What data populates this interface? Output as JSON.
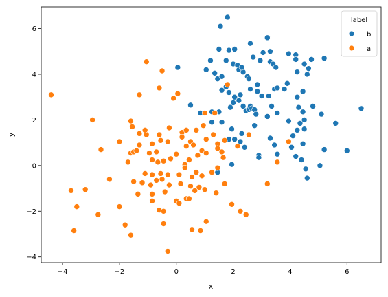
{
  "chart_data": {
    "type": "scatter",
    "title": "",
    "xlabel": "x",
    "ylabel": "y",
    "xlim": [
      -4.75,
      7.2
    ],
    "ylim": [
      -4.25,
      6.95
    ],
    "xticks": [
      -4,
      -2,
      0,
      2,
      4,
      6
    ],
    "yticks": [
      -4,
      -2,
      0,
      2,
      4,
      6
    ],
    "grid": false,
    "legend": {
      "title": "label",
      "placement": "top-right"
    },
    "series": [
      {
        "name": "b",
        "color": "#1f77b4",
        "points": [
          [
            1.8,
            6.5
          ],
          [
            1.55,
            6.1
          ],
          [
            3.2,
            5.6
          ],
          [
            2.6,
            5.35
          ],
          [
            1.5,
            5.1
          ],
          [
            1.85,
            5.05
          ],
          [
            2.05,
            5.1
          ],
          [
            1.05,
            4.2
          ],
          [
            1.2,
            4.6
          ],
          [
            1.75,
            4.6
          ],
          [
            2.0,
            4.45
          ],
          [
            2.15,
            4.4
          ],
          [
            2.2,
            4.2
          ],
          [
            2.35,
            4.1
          ],
          [
            2.3,
            4.3
          ],
          [
            2.5,
            3.9
          ],
          [
            2.7,
            4.75
          ],
          [
            2.95,
            4.6
          ],
          [
            3.05,
            4.95
          ],
          [
            3.3,
            5.0
          ],
          [
            3.3,
            4.55
          ],
          [
            3.4,
            4.45
          ],
          [
            3.5,
            4.3
          ],
          [
            3.95,
            4.9
          ],
          [
            4.2,
            4.85
          ],
          [
            4.2,
            4.65
          ],
          [
            4.5,
            4.45
          ],
          [
            4.65,
            4.25
          ],
          [
            4.6,
            4.0
          ],
          [
            4.75,
            4.65
          ],
          [
            5.2,
            4.7
          ],
          [
            0.05,
            4.3
          ],
          [
            1.35,
            4.05
          ],
          [
            1.45,
            3.8
          ],
          [
            1.6,
            3.9
          ],
          [
            2.55,
            3.8
          ],
          [
            1.6,
            3.3
          ],
          [
            1.75,
            3.45
          ],
          [
            1.85,
            3.2
          ],
          [
            2.05,
            3.0
          ],
          [
            2.25,
            3.1
          ],
          [
            2.6,
            3.35
          ],
          [
            2.85,
            3.55
          ],
          [
            2.85,
            3.25
          ],
          [
            3.0,
            3.05
          ],
          [
            3.25,
            3.05
          ],
          [
            3.45,
            3.35
          ],
          [
            3.55,
            3.4
          ],
          [
            3.8,
            3.35
          ],
          [
            3.9,
            3.6
          ],
          [
            4.25,
            4.1
          ],
          [
            4.25,
            3.0
          ],
          [
            4.45,
            3.25
          ],
          [
            2.0,
            2.75
          ],
          [
            2.2,
            2.85
          ],
          [
            2.35,
            2.6
          ],
          [
            2.45,
            2.4
          ],
          [
            2.55,
            2.45
          ],
          [
            2.6,
            2.6
          ],
          [
            2.65,
            2.5
          ],
          [
            2.75,
            2.45
          ],
          [
            2.8,
            2.25
          ],
          [
            3.2,
            2.15
          ],
          [
            3.35,
            2.6
          ],
          [
            3.55,
            2.3
          ],
          [
            3.95,
            1.95
          ],
          [
            4.3,
            2.55
          ],
          [
            4.45,
            2.35
          ],
          [
            4.5,
            2.0
          ],
          [
            4.8,
            2.6
          ],
          [
            5.1,
            2.25
          ],
          [
            5.6,
            1.85
          ],
          [
            6.5,
            2.5
          ],
          [
            0.5,
            2.65
          ],
          [
            0.85,
            2.3
          ],
          [
            1.25,
            2.35
          ],
          [
            1.5,
            2.35
          ],
          [
            1.9,
            2.55
          ],
          [
            1.6,
            1.9
          ],
          [
            1.95,
            1.6
          ],
          [
            2.3,
            1.4
          ],
          [
            2.75,
            1.75
          ],
          [
            4.25,
            1.55
          ],
          [
            4.35,
            1.85
          ],
          [
            4.5,
            1.6
          ],
          [
            4.1,
            1.3
          ],
          [
            1.85,
            1.15
          ],
          [
            2.05,
            1.15
          ],
          [
            2.25,
            1.05
          ],
          [
            2.4,
            0.8
          ],
          [
            2.9,
            0.45
          ],
          [
            2.9,
            0.35
          ],
          [
            3.3,
            1.2
          ],
          [
            3.45,
            0.9
          ],
          [
            3.55,
            0.5
          ],
          [
            4.05,
            0.8
          ],
          [
            4.45,
            0.95
          ],
          [
            5.2,
            0.7
          ],
          [
            6.0,
            0.65
          ],
          [
            4.2,
            0.4
          ],
          [
            4.4,
            0.25
          ],
          [
            4.55,
            -0.15
          ],
          [
            4.6,
            -0.55
          ],
          [
            5.05,
            0.0
          ],
          [
            1.45,
            -0.3
          ],
          [
            1.95,
            0.05
          ],
          [
            1.25,
            1.9
          ]
        ]
      },
      {
        "name": "a",
        "color": "#ff7f0e",
        "points": [
          [
            -4.4,
            3.1
          ],
          [
            -1.05,
            4.55
          ],
          [
            -0.5,
            4.15
          ],
          [
            -0.6,
            3.4
          ],
          [
            -1.3,
            3.1
          ],
          [
            -0.1,
            2.95
          ],
          [
            0.05,
            3.15
          ],
          [
            1.8,
            3.55
          ],
          [
            1.0,
            2.3
          ],
          [
            1.35,
            2.3
          ],
          [
            -1.6,
            1.95
          ],
          [
            -1.55,
            1.7
          ],
          [
            -2.95,
            2.0
          ],
          [
            -1.3,
            1.4
          ],
          [
            -1.05,
            1.35
          ],
          [
            -1.1,
            1.55
          ],
          [
            -0.6,
            1.35
          ],
          [
            -0.25,
            1.65
          ],
          [
            0.2,
            1.45
          ],
          [
            0.35,
            1.55
          ],
          [
            0.7,
            1.55
          ],
          [
            0.95,
            1.75
          ],
          [
            1.3,
            1.35
          ],
          [
            2.55,
            1.35
          ],
          [
            -2.0,
            1.05
          ],
          [
            -1.3,
            0.9
          ],
          [
            -0.85,
            0.95
          ],
          [
            -0.7,
            0.6
          ],
          [
            -0.55,
            1.1
          ],
          [
            -0.3,
            1.05
          ],
          [
            0.2,
            1.25
          ],
          [
            0.35,
            0.85
          ],
          [
            0.5,
            1.05
          ],
          [
            0.6,
            0.9
          ],
          [
            0.9,
            0.65
          ],
          [
            1.05,
            1.15
          ],
          [
            1.45,
            0.95
          ],
          [
            1.6,
            0.6
          ],
          [
            1.7,
            1.1
          ],
          [
            2.15,
            0.85
          ],
          [
            3.95,
            1.05
          ],
          [
            -2.65,
            0.7
          ],
          [
            -1.6,
            0.55
          ],
          [
            -1.5,
            0.6
          ],
          [
            -1.4,
            0.65
          ],
          [
            -0.95,
            0.55
          ],
          [
            -0.85,
            0.25
          ],
          [
            -0.65,
            0.15
          ],
          [
            -0.45,
            0.2
          ],
          [
            -0.2,
            0.3
          ],
          [
            0.0,
            0.5
          ],
          [
            0.3,
            0.05
          ],
          [
            0.45,
            0.25
          ],
          [
            0.75,
            0.45
          ],
          [
            1.05,
            0.55
          ],
          [
            1.45,
            0.75
          ],
          [
            1.65,
            0.35
          ],
          [
            3.55,
            0.15
          ],
          [
            -1.7,
            0.15
          ],
          [
            -1.1,
            -0.35
          ],
          [
            -0.85,
            -0.4
          ],
          [
            -0.55,
            -0.35
          ],
          [
            -0.3,
            -0.4
          ],
          [
            0.1,
            -0.4
          ],
          [
            0.3,
            -0.1
          ],
          [
            0.55,
            -0.5
          ],
          [
            0.7,
            -0.3
          ],
          [
            0.9,
            -0.45
          ],
          [
            1.25,
            -0.3
          ],
          [
            1.45,
            -0.1
          ],
          [
            -2.35,
            -0.6
          ],
          [
            -1.5,
            -0.7
          ],
          [
            -1.2,
            -0.75
          ],
          [
            -0.9,
            -0.85
          ],
          [
            -0.7,
            -0.65
          ],
          [
            -0.5,
            -0.6
          ],
          [
            -0.25,
            -0.85
          ],
          [
            0.15,
            -0.8
          ],
          [
            0.5,
            -0.9
          ],
          [
            0.8,
            -0.95
          ],
          [
            1.0,
            -1.05
          ],
          [
            1.7,
            -0.8
          ],
          [
            3.2,
            -0.8
          ],
          [
            -3.7,
            -1.1
          ],
          [
            -3.2,
            -1.05
          ],
          [
            -1.35,
            -1.25
          ],
          [
            -0.85,
            -1.25
          ],
          [
            -0.4,
            -1.15
          ],
          [
            0.0,
            -1.55
          ],
          [
            0.35,
            -1.45
          ],
          [
            0.45,
            -1.45
          ],
          [
            0.65,
            -1.1
          ],
          [
            1.4,
            -1.2
          ],
          [
            -3.5,
            -1.8
          ],
          [
            -2.0,
            -1.8
          ],
          [
            -0.85,
            -1.55
          ],
          [
            -0.6,
            -1.95
          ],
          [
            -0.45,
            -2.0
          ],
          [
            0.1,
            -1.65
          ],
          [
            1.95,
            -1.7
          ],
          [
            2.25,
            -2.0
          ],
          [
            2.45,
            -2.15
          ],
          [
            -2.75,
            -2.15
          ],
          [
            -1.8,
            -2.6
          ],
          [
            -0.45,
            -2.55
          ],
          [
            0.55,
            -2.8
          ],
          [
            0.85,
            -2.85
          ],
          [
            1.05,
            -2.45
          ],
          [
            -3.6,
            -2.85
          ],
          [
            -1.6,
            -3.05
          ],
          [
            -0.3,
            -3.75
          ]
        ]
      }
    ]
  }
}
